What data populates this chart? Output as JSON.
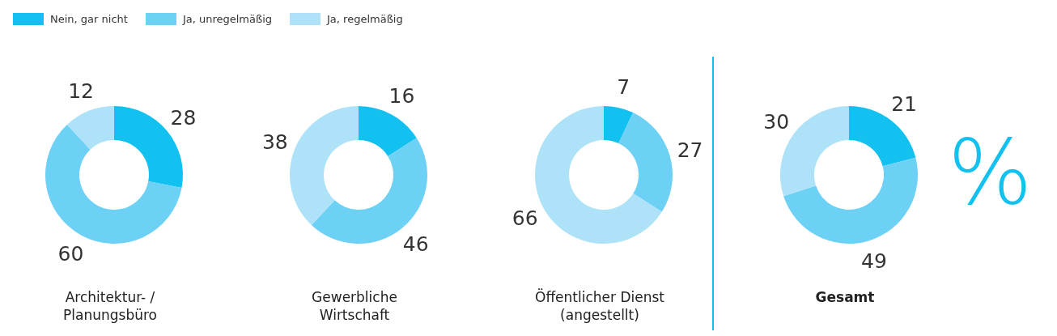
{
  "chart_data": [
    {
      "type": "donut",
      "title": "Architektur- / Planungsbüro",
      "categories": [
        "Nein, gar nicht",
        "Ja, unregelmäßig",
        "Ja, regelmäßig"
      ],
      "values": [
        28,
        60,
        12
      ],
      "colors": [
        "#13c1f0",
        "#6dd0f5",
        "#aee2f8"
      ],
      "data_labels": true,
      "legend": "top"
    },
    {
      "type": "donut",
      "title": "Gewerbliche Wirtschaft",
      "categories": [
        null,
        null,
        null
      ],
      "values": [
        16,
        46,
        38
      ],
      "colors": [
        "#13c1f0",
        "#6dd0f5",
        "#aee2f8"
      ],
      "data_labels": true
    },
    {
      "type": "donut",
      "title": "Öffentlicher Dienst (angestellt)",
      "categories": [
        null,
        null,
        null
      ],
      "values": [
        7,
        27,
        66
      ],
      "colors": [
        "#13c1f0",
        "#6dd0f5",
        "#aee2f8"
      ],
      "data_labels": true
    },
    {
      "type": "donut",
      "title": "Gesamt",
      "categories": [
        null,
        null,
        null
      ],
      "values": [
        21,
        49,
        30
      ],
      "colors": [
        "#13c1f0",
        "#6dd0f5",
        "#aee2f8"
      ],
      "data_labels": true,
      "annotations": [
        "%"
      ]
    }
  ]
}
